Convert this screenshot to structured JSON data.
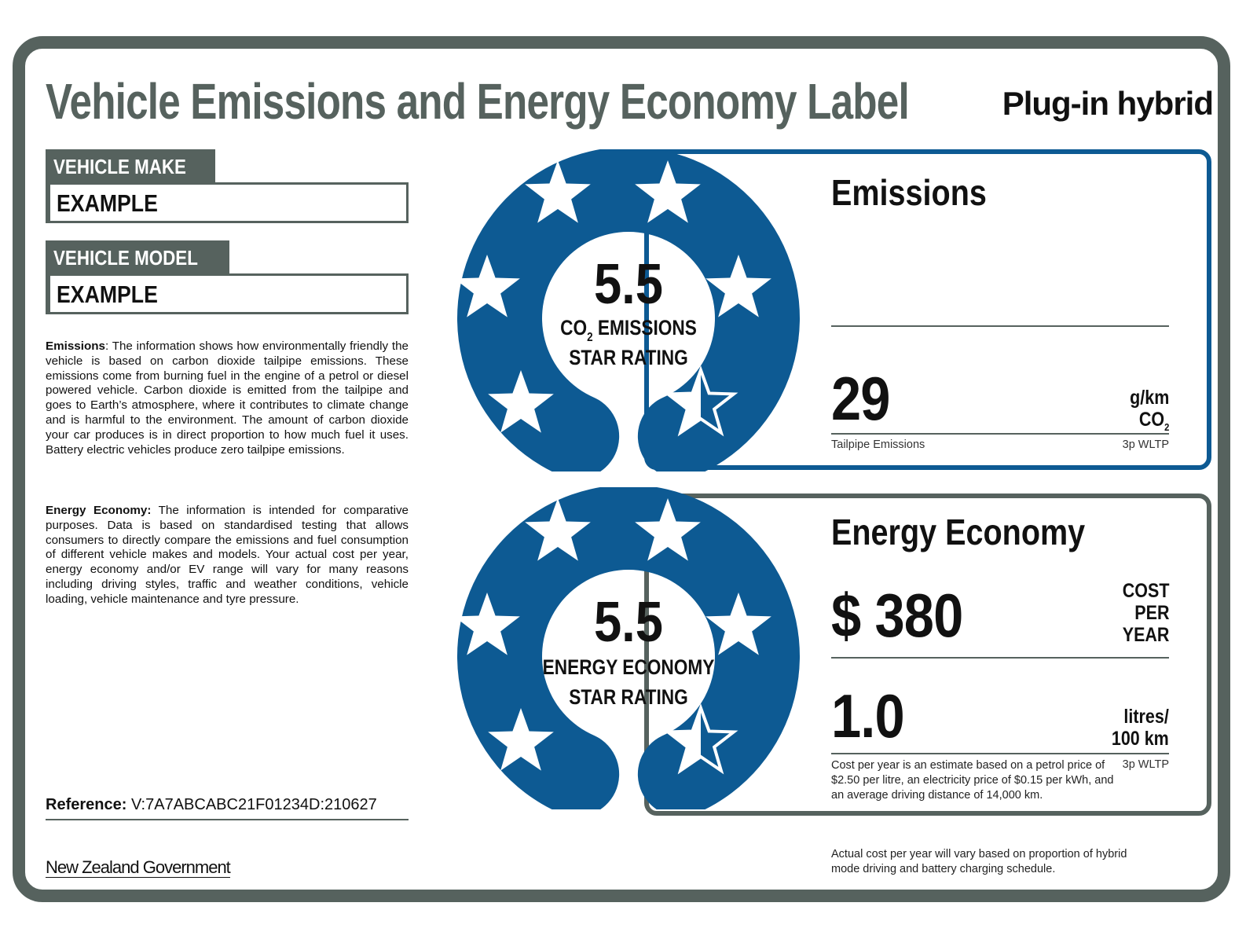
{
  "header": {
    "title": "Vehicle Emissions and Energy Economy Label",
    "vehicle_type": "Plug-in hybrid"
  },
  "vehicle": {
    "make_label": "VEHICLE MAKE",
    "make_value": "EXAMPLE",
    "model_label": "VEHICLE MODEL",
    "model_value": "EXAMPLE"
  },
  "info": {
    "emissions_heading": "Emissions",
    "emissions_text": ": The information shows how environmentally friendly the vehicle is based on carbon dioxide tailpipe emissions. These emissions come from burning fuel in the engine of a petrol or diesel powered vehicle. Carbon dioxide is emitted from the tailpipe and goes to Earth’s atmosphere, where it contributes to climate change and is harmful to the environment. The amount of carbon dioxide your car produces is in direct proportion to how much fuel it uses. Battery electric vehicles produce zero tailpipe emissions.",
    "economy_heading": "Energy Economy:",
    "economy_text": " The information is intended for comparative purposes. Data is based on standardised testing that allows consumers to directly compare the emissions and fuel consumption of different vehicle makes and models. Your actual cost per year, energy economy and/or EV range will vary for many reasons including driving styles, traffic and weather conditions, vehicle loading, vehicle maintenance and tyre pressure."
  },
  "reference": {
    "label": "Reference:",
    "value": "V:7A7ABCABC21F01234D:210627"
  },
  "footer": {
    "government": "New Zealand Government",
    "note": "Actual cost per year will vary based on proportion of hybrid mode driving and battery charging schedule."
  },
  "emissions_panel": {
    "title": "Emissions",
    "rating": "5.5",
    "rating_label_co": "CO",
    "rating_label_sub": "2",
    "rating_label_rest": " EMISSIONS",
    "rating_label_line2": "STAR RATING",
    "value": "29",
    "unit_line1": "g/km",
    "unit_line2": "CO",
    "unit_sub": "2",
    "caption": "Tailpipe Emissions",
    "test": "3p WLTP",
    "stars": 5.5,
    "color": "#0d5a93"
  },
  "economy_panel": {
    "title": "Energy Economy",
    "rating": "5.5",
    "rating_label_line1": "ENERGY ECONOMY",
    "rating_label_line2": "STAR RATING",
    "cost": "$ 380",
    "cost_label_1": "COST",
    "cost_label_2": "PER",
    "cost_label_3": "YEAR",
    "consumption": "1.0",
    "consumption_unit_1": "litres/",
    "consumption_unit_2": "100 km",
    "note": "Cost per year is an estimate based on a petrol price of $2.50 per litre, an electricity price of $0.15 per kWh, and an average driving distance of 14,000 km.",
    "test": "3p WLTP",
    "stars": 5.5,
    "color": "#0d5a93"
  }
}
